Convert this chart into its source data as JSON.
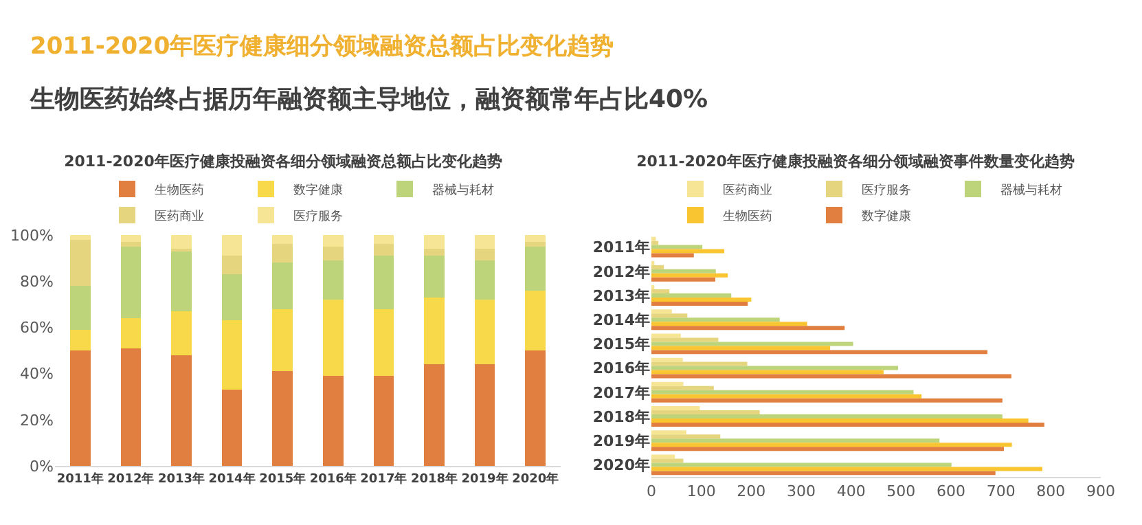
{
  "chart_data": [
    {
      "type": "bar",
      "title": "2011-2020年医疗健康投融资各细分领域融资总额占比变化趋势",
      "annotations": [
        "2011-2020年医疗健康细分领域融资总额占比变化趋势",
        "生物医药始终占据历年融资额主导地位，融资额常年占比40%"
      ],
      "stacked": true,
      "categories": [
        "2011年",
        "2012年",
        "2013年",
        "2014年",
        "2015年",
        "2016年",
        "2017年",
        "2018年",
        "2019年",
        "2020年"
      ],
      "series": [
        {
          "name": "生物医药",
          "color": "#e07f3f",
          "values": [
            50,
            51,
            48,
            33,
            41,
            39,
            39,
            44,
            44,
            50
          ]
        },
        {
          "name": "数字健康",
          "color": "#f8d94a",
          "values": [
            9,
            13,
            19,
            30,
            27,
            33,
            29,
            29,
            28,
            26
          ]
        },
        {
          "name": "器械与耗材",
          "color": "#bdd47a",
          "values": [
            19,
            31,
            26,
            20,
            20,
            17,
            23,
            18,
            17,
            19
          ]
        },
        {
          "name": "医药商业",
          "color": "#e6d57f",
          "values": [
            20,
            2,
            1,
            8,
            8,
            6,
            5,
            3,
            5,
            2
          ]
        },
        {
          "name": "医疗服务",
          "color": "#f6e594",
          "values": [
            2,
            3,
            6,
            9,
            4,
            5,
            4,
            6,
            6,
            3
          ]
        }
      ],
      "ylim": [
        0,
        100
      ],
      "yticks": [
        {
          "value": 0,
          "label": "0%"
        },
        {
          "value": 20,
          "label": "20%"
        },
        {
          "value": 40,
          "label": "40%"
        },
        {
          "value": 60,
          "label": "60%"
        },
        {
          "value": 80,
          "label": "80%"
        },
        {
          "value": 100,
          "label": "100%"
        }
      ],
      "grid": false,
      "legend": "top"
    },
    {
      "type": "bar",
      "title": "2011-2020年医疗健康投融资各细分领域融资事件数量变化趋势",
      "orientation": "horizontal",
      "categories": [
        "2011年",
        "2012年",
        "2013年",
        "2014年",
        "2015年",
        "2016年",
        "2017年",
        "2018年",
        "2019年",
        "2020年"
      ],
      "series": [
        {
          "name": "医药商业",
          "color": "#f6e594",
          "values": [
            9,
            6,
            6,
            41,
            59,
            63,
            64,
            97,
            70,
            47
          ]
        },
        {
          "name": "医疗服务",
          "color": "#e6d57f",
          "values": [
            14,
            25,
            36,
            72,
            134,
            192,
            125,
            217,
            138,
            64
          ]
        },
        {
          "name": "器械与耗材",
          "color": "#bdd47a",
          "values": [
            102,
            129,
            160,
            257,
            404,
            494,
            525,
            703,
            577,
            601
          ]
        },
        {
          "name": "生物医药",
          "color": "#f9c531",
          "values": [
            146,
            153,
            200,
            312,
            358,
            465,
            541,
            755,
            722,
            783
          ]
        },
        {
          "name": "数字健康",
          "color": "#e07f3f",
          "values": [
            85,
            128,
            193,
            387,
            673,
            721,
            703,
            787,
            706,
            689
          ]
        }
      ],
      "xlim": [
        0,
        900
      ],
      "xticks": [
        0,
        100,
        200,
        300,
        400,
        500,
        600,
        700,
        800,
        900
      ],
      "grid": false,
      "legend": "top"
    }
  ]
}
